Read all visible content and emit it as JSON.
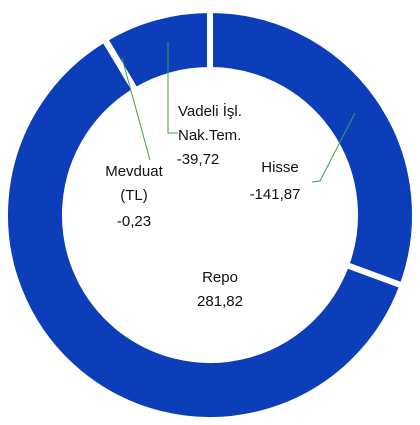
{
  "chart_data": {
    "type": "donut",
    "categories": [
      "Hisse",
      "Repo",
      "Mevduat (TL)",
      "Vadeli İşl. Nak.Tem."
    ],
    "values": [
      -141.87,
      281.82,
      -0.23,
      -39.72
    ],
    "value_labels": [
      "-141,87",
      "281,82",
      "-0,23",
      "-39,72"
    ],
    "color": "#0b3eb8"
  }
}
